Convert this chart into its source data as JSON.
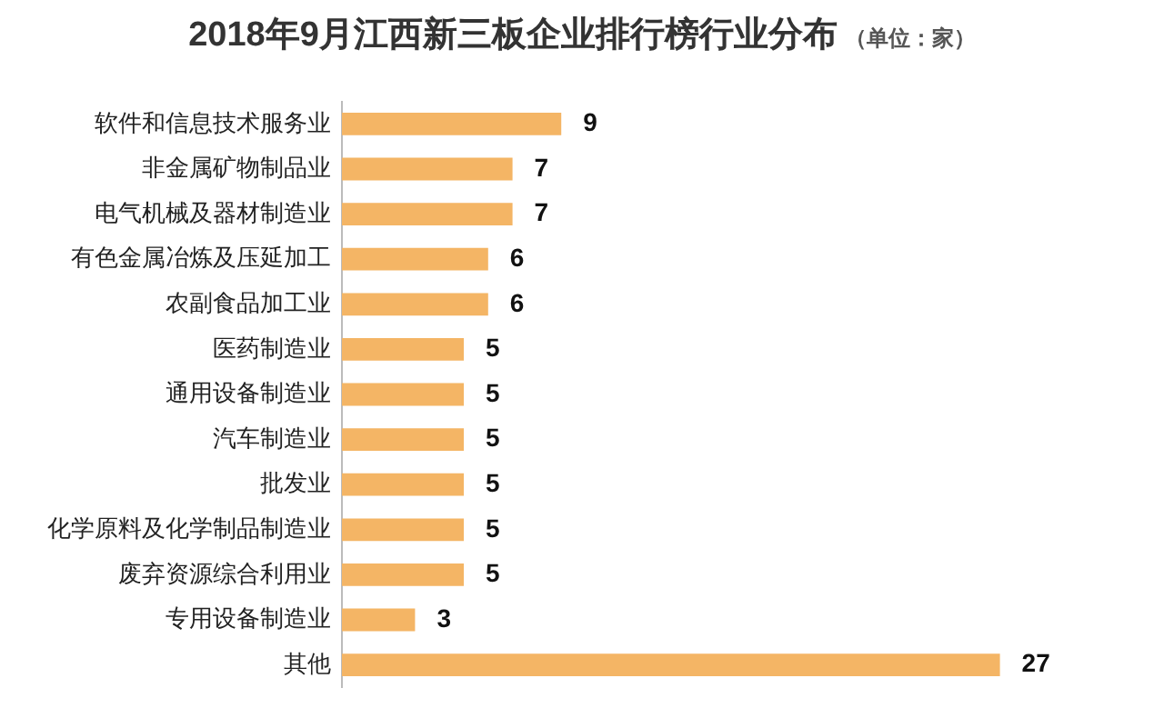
{
  "chart_data": {
    "type": "bar",
    "orientation": "horizontal",
    "title": "2018年9月江西新三板企业排行榜行业分布",
    "subtitle": "（单位：家）",
    "categories": [
      "软件和信息技术服务业",
      "非金属矿物制品业",
      "电气机械及器材制造业",
      "有色金属冶炼及压延加工",
      "农副食品加工业",
      "医药制造业",
      "通用设备制造业",
      "汽车制造业",
      "批发业",
      "化学原料及化学制品制造业",
      "废弃资源综合利用业",
      "专用设备制造业",
      "其他"
    ],
    "values": [
      9,
      7,
      7,
      6,
      6,
      5,
      5,
      5,
      5,
      5,
      5,
      3,
      27
    ],
    "color": "#f4b565",
    "data_labels": true,
    "legend": false,
    "tick_labels": "y"
  }
}
